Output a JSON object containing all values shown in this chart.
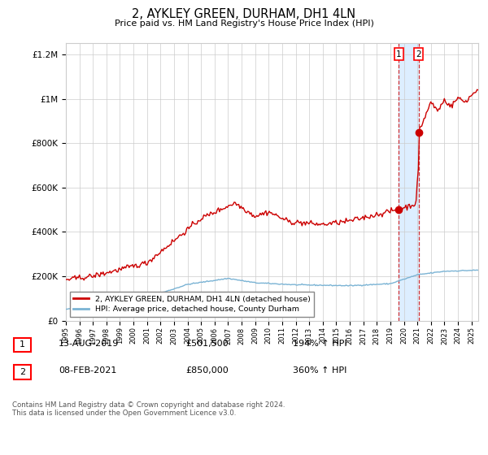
{
  "title": "2, AYKLEY GREEN, DURHAM, DH1 4LN",
  "subtitle": "Price paid vs. HM Land Registry's House Price Index (HPI)",
  "legend_line1": "2, AYKLEY GREEN, DURHAM, DH1 4LN (detached house)",
  "legend_line2": "HPI: Average price, detached house, County Durham",
  "annotation1": {
    "label": "1",
    "date_str": "13-AUG-2019",
    "price_str": "£501,500",
    "pct_str": "194% ↑ HPI",
    "x_year": 2019.617,
    "y_val": 501500
  },
  "annotation2": {
    "label": "2",
    "date_str": "08-FEB-2021",
    "price_str": "£850,000",
    "pct_str": "360% ↑ HPI",
    "x_year": 2021.1,
    "y_val": 850000
  },
  "footnote": "Contains HM Land Registry data © Crown copyright and database right 2024.\nThis data is licensed under the Open Government Licence v3.0.",
  "hpi_color": "#7ab3d4",
  "price_color": "#cc0000",
  "background_color": "#ffffff",
  "grid_color": "#cccccc",
  "highlight_color": "#ddeeff",
  "ylim": [
    0,
    1250000
  ],
  "xlim_start": 1995.0,
  "xlim_end": 2025.5
}
